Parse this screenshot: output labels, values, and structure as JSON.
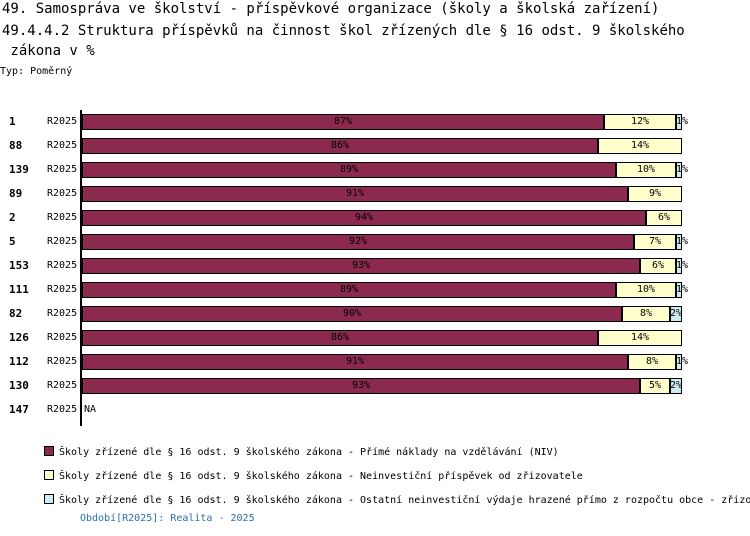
{
  "title_line1": "49. Samospráva ve školství - příspěvkové organizace (školy a školská zařízení)",
  "title_line2": "49.4.4.2 Struktura příspěvků na činnost škol zřízených dle § 16 odst. 9 školského",
  "title_line3": " zákona v %",
  "subtitle": "Typ: Poměrný",
  "period_note": "Období[R2025]: Realita - 2025",
  "chart_data": {
    "type": "bar",
    "orientation": "horizontal",
    "stacked": true,
    "normalized_percent": true,
    "xlim": [
      0,
      100
    ],
    "categories": [
      "1",
      "88",
      "139",
      "89",
      "2",
      "5",
      "153",
      "111",
      "82",
      "126",
      "112",
      "130",
      "147"
    ],
    "period_labels": [
      "R2025",
      "R2025",
      "R2025",
      "R2025",
      "R2025",
      "R2025",
      "R2025",
      "R2025",
      "R2025",
      "R2025",
      "R2025",
      "R2025",
      "R2025"
    ],
    "na_label": "NA",
    "series": [
      {
        "name": "Školy zřízené dle § 16 odst. 9 školského zákona - Přímé náklady na vzdělávání (NIV)",
        "color": "#8b2a4e",
        "values": [
          87,
          86,
          89,
          91,
          94,
          92,
          93,
          89,
          90,
          86,
          91,
          93,
          null
        ],
        "labels": [
          "87%",
          "86%",
          "89%",
          "91%",
          "94%",
          "92%",
          "93%",
          "89%",
          "90%",
          "86%",
          "91%",
          "93%",
          ""
        ]
      },
      {
        "name": "Školy zřízené dle § 16 odst. 9 školského zákona  - Neinvestiční příspěvek od zřizovatele",
        "color": "#ffffcc",
        "values": [
          12,
          14,
          10,
          9,
          6,
          7,
          6,
          10,
          8,
          14,
          8,
          5,
          null
        ],
        "labels": [
          "12%",
          "14%",
          "10%",
          "9%",
          "6%",
          "7%",
          "6%",
          "10%",
          "8%",
          "14%",
          "8%",
          "5%",
          ""
        ]
      },
      {
        "name": "Školy zřízené dle § 16 odst. 9 školského zákona - Ostatní neinvestiční výdaje hrazené přímo z rozpočtu obce - zřizo",
        "color": "#ccecf5",
        "values": [
          1,
          0,
          1,
          0,
          0,
          1,
          1,
          1,
          2,
          0,
          1,
          2,
          null
        ],
        "labels": [
          "1%",
          "",
          "1%",
          "",
          "",
          "1%",
          "1%",
          "1%",
          "2%",
          "",
          "1%",
          "2%",
          ""
        ]
      }
    ]
  }
}
